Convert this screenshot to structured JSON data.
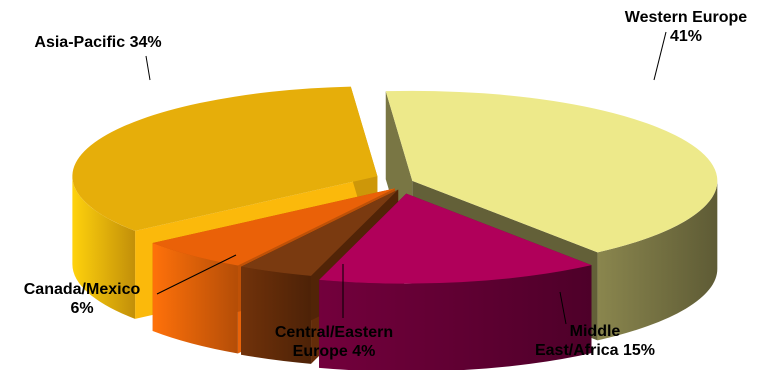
{
  "chart_data": {
    "type": "pie",
    "style": "3d-exploded",
    "slices": [
      {
        "label_lines": [
          "Western Europe",
          "41%"
        ],
        "category": "Western Europe",
        "value": 41,
        "color": "#EDE98A",
        "side_color": "#6E6B3E"
      },
      {
        "label_lines": [
          "Middle",
          "East/Africa 15%"
        ],
        "category": "Middle East/Africa",
        "value": 15,
        "color": "#B0005A",
        "side_color": "#5C0030"
      },
      {
        "label_lines": [
          "Central/Eastern",
          "Europe 4%"
        ],
        "category": "Central/Eastern Europe",
        "value": 4,
        "color": "#7A3A10",
        "side_color": "#5A2808"
      },
      {
        "label_lines": [
          "Canada/Mexico",
          "6%"
        ],
        "category": "Canada/Mexico",
        "value": 6,
        "color": "#EA6108",
        "side_color": "#D45A08"
      },
      {
        "label_lines": [
          "Asia-Pacific 34%"
        ],
        "category": "Asia-Pacific",
        "value": 34,
        "color": "#E6AE0A",
        "side_color": "#E4A80A"
      }
    ]
  }
}
